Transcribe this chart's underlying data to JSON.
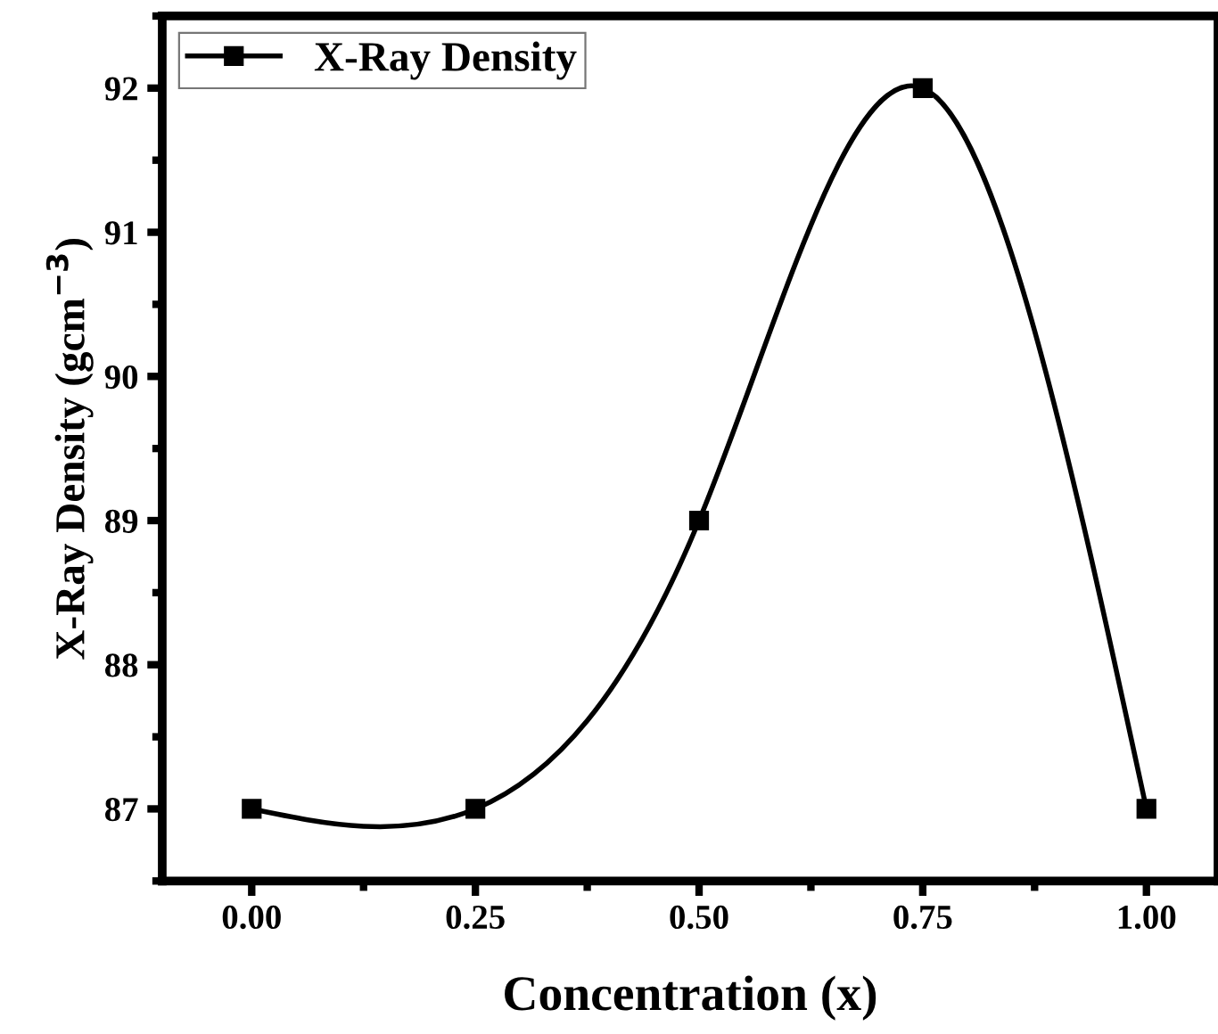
{
  "chart_data": {
    "type": "line",
    "xlabel": "Concentration (x)",
    "ylabel": "X-Ray Density (gcm$^{−3}$)",
    "x": [
      0,
      0.25,
      0.5,
      0.75,
      1.0
    ],
    "series": [
      {
        "name": "X-Ray Density",
        "color": "#000000",
        "values": [
          87,
          87,
          89,
          92,
          87
        ]
      }
    ],
    "xlim": [
      -0.1,
      1.08
    ],
    "xticks": [
      {
        "value": 0,
        "label": "0.00"
      },
      {
        "value": 0.25,
        "label": "0.25"
      },
      {
        "value": 0.5,
        "label": "0.50"
      },
      {
        "value": 0.75,
        "label": "0.75"
      },
      {
        "value": 1.0,
        "label": "1.00"
      }
    ],
    "ylim": [
      86.5,
      92.5
    ],
    "yticks": [
      87,
      88,
      89,
      90,
      91,
      92
    ],
    "marker": "square",
    "line_style": "solid",
    "legend": "top left",
    "grid": false
  }
}
